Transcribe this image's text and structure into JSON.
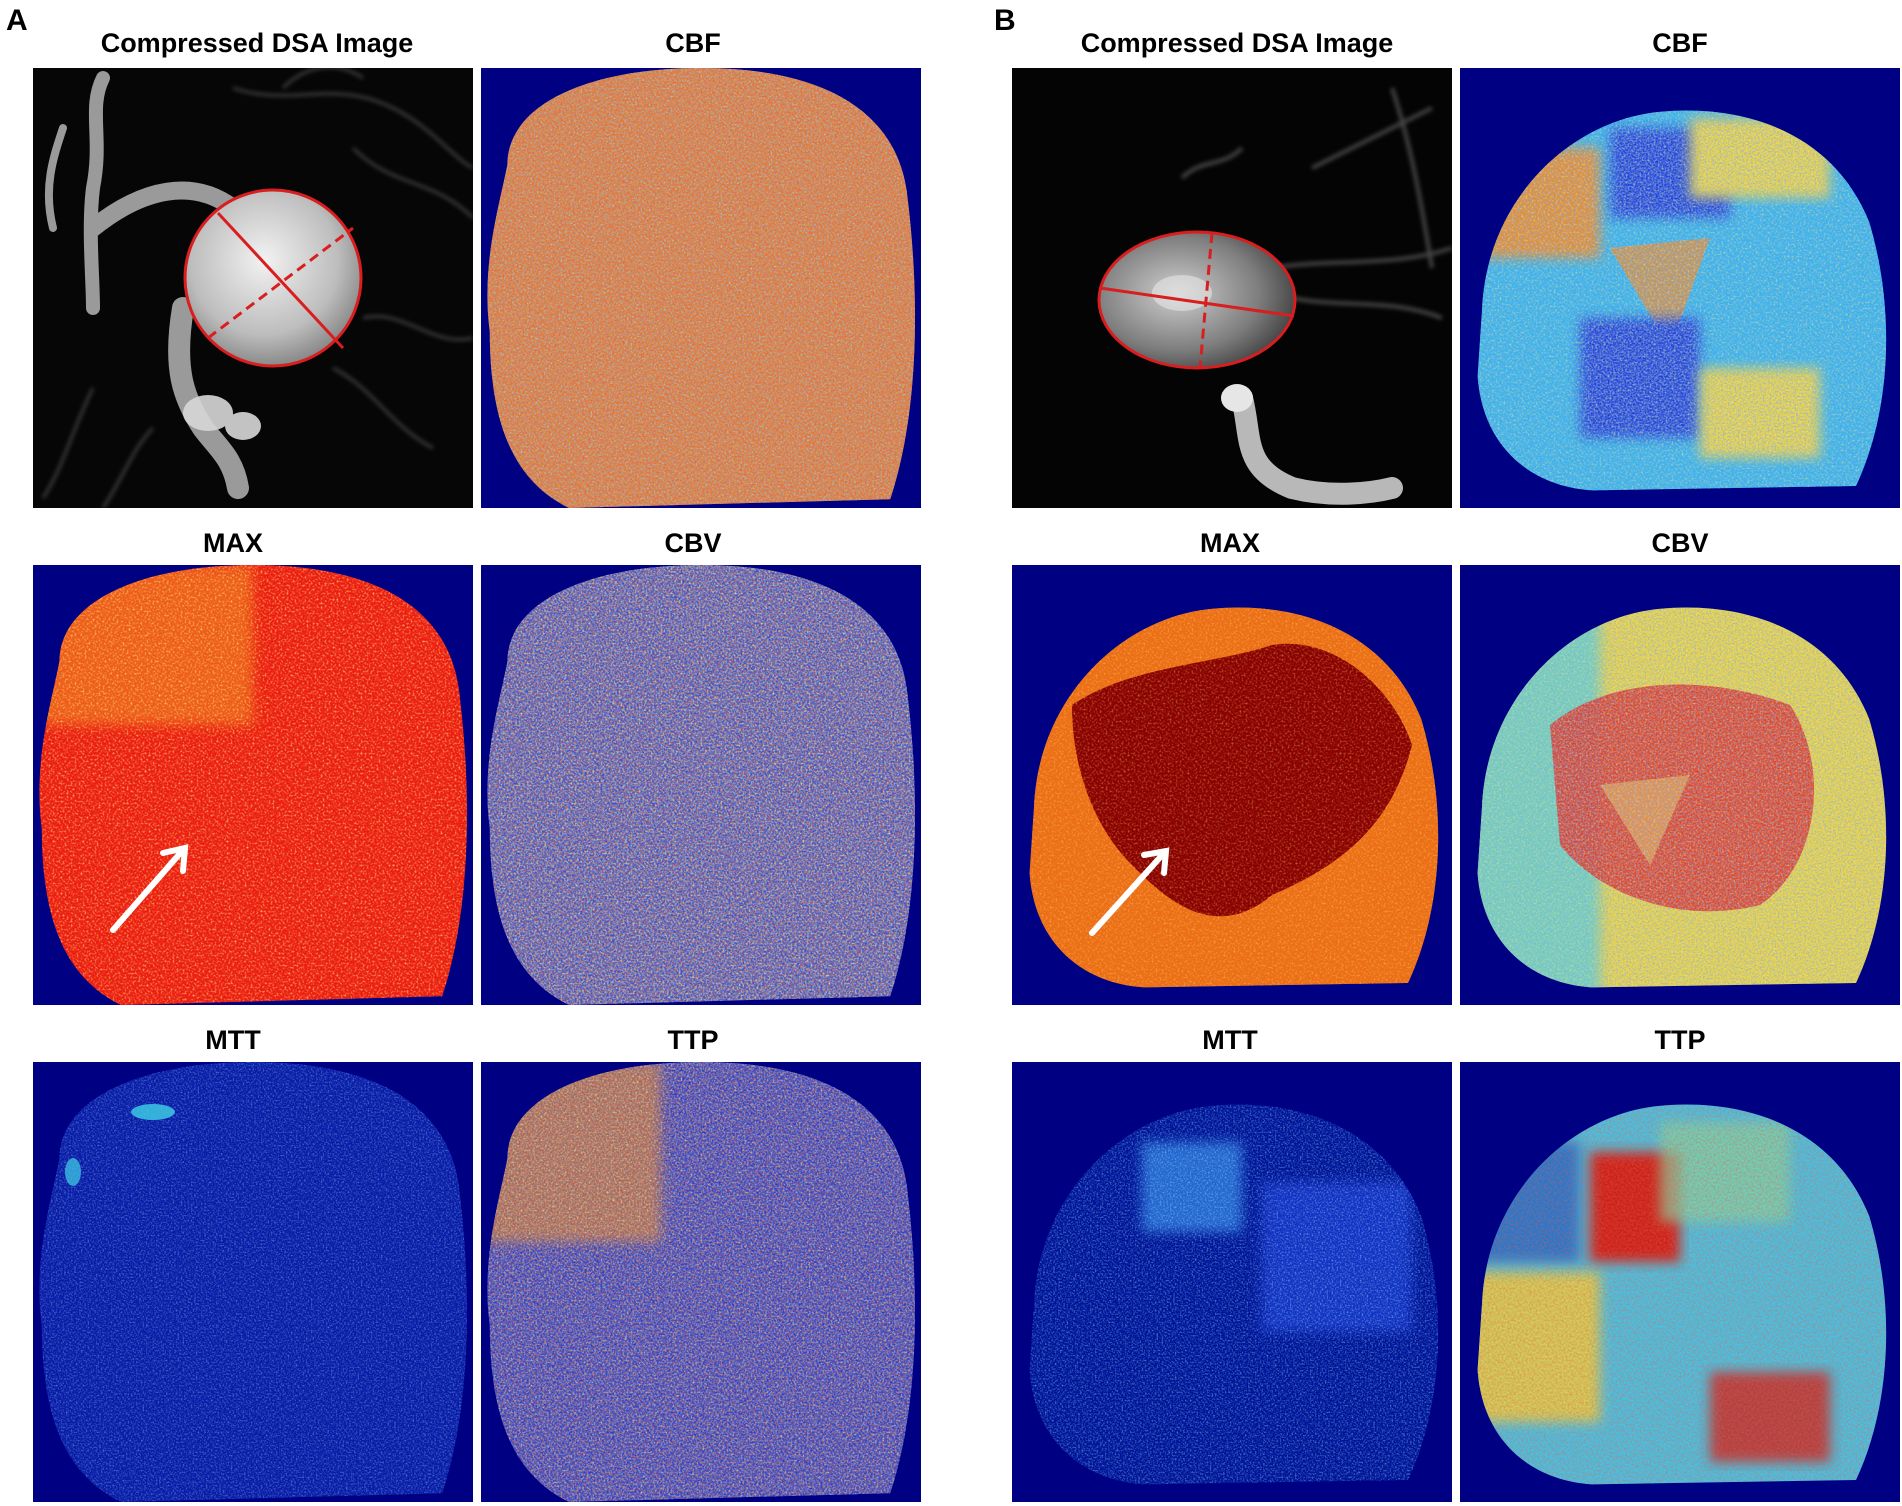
{
  "panels": [
    {
      "letter": "A",
      "titles": {
        "dsa": "Compressed DSA Image",
        "cbf": "CBF",
        "max": "MAX",
        "cbv": "CBV",
        "mtt": "MTT",
        "ttp": "TTP"
      }
    },
    {
      "letter": "B",
      "titles": {
        "dsa": "Compressed DSA Image",
        "cbf": "CBF",
        "max": "MAX",
        "cbv": "CBV",
        "mtt": "MTT",
        "ttp": "TTP"
      }
    }
  ],
  "colors": {
    "map_background": "#000083",
    "roi_outline": "#d81e1e",
    "arrow": "#ffffff",
    "jet_blue": "#1c3dd6",
    "jet_cyan": "#3fd2e6",
    "jet_yellow": "#f2d53a",
    "jet_orange": "#f08a1e",
    "jet_red": "#e81e10",
    "jet_darkred": "#8a0000"
  },
  "icons": {
    "arrow": "white-arrow-icon",
    "roi": "red-ellipse-roi"
  }
}
